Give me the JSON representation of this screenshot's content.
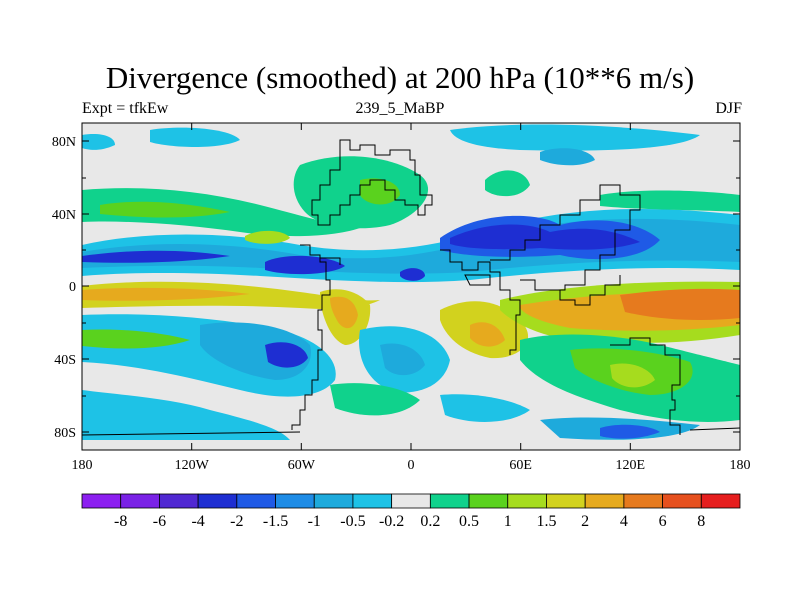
{
  "title": "Divergence (smoothed) at 200 hPa (10**6 m/s)",
  "subtitle_left": "Expt = tfkEw",
  "subtitle_center": "239_5_MaBP",
  "subtitle_right": "DJF",
  "lat_labels": [
    "80N",
    "40N",
    "0",
    "40S",
    "80S"
  ],
  "lon_labels": [
    "180",
    "120W",
    "60W",
    "0",
    "60E",
    "120E",
    "180"
  ],
  "colorbar": {
    "colors": [
      "#8c1ff0",
      "#7a22e6",
      "#5028d2",
      "#1e2ed2",
      "#1f5ae6",
      "#1e8ce6",
      "#1eaadc",
      "#1ec2e6",
      "#e8e8e8",
      "#10d28c",
      "#5ad21e",
      "#a6dc1e",
      "#d2d21e",
      "#e6aa1e",
      "#e67a1e",
      "#e6501e",
      "#e61e1e"
    ],
    "labels": [
      "-8",
      "-6",
      "-4",
      "-2",
      "-1.5",
      "-1",
      "-0.5",
      "-0.2",
      "0.2",
      "0.5",
      "1",
      "1.5",
      "2",
      "4",
      "6",
      "8"
    ]
  }
}
